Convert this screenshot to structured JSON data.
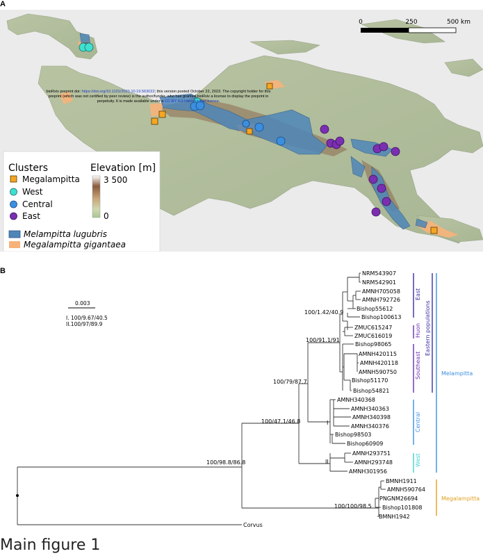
{
  "panel_a": {
    "label": "A",
    "scale_bar": {
      "ticks": [
        "0",
        "250",
        "500 km"
      ]
    },
    "preprint_notice": {
      "line1a": "bioRxiv preprint doi: ",
      "link1": "https://doi.org/10.1101/2023.10.19.563022",
      "line1b": "; this version posted October 22, 2023. The copyright holder for this",
      "line2": "preprint (which was not certified by peer review) is the author/funder, who has granted bioRxiv a license to display the preprint in",
      "line3a": "perpetuity. It is made available under a ",
      "link2": "CC-BY 4.0 International license",
      "line3b": "."
    },
    "legend": {
      "clusters_title": "Clusters",
      "clusters": [
        "Megalampitta",
        "West",
        "Central",
        "East"
      ],
      "elevation_title": "Elevation [m]",
      "elevation_max": "3 500",
      "elevation_min": "0",
      "species": [
        "Melampitta lugubris",
        "Megalampitta gigantaea"
      ],
      "colors": {
        "Megalampitta": "#f5a623",
        "West": "#40e0d0",
        "Central": "#3b8fe0",
        "East": "#7b2fb0",
        "lugubris_fill": "#4f86b8",
        "gigantaea_fill": "#f7b27a"
      }
    }
  },
  "panel_b": {
    "label": "B",
    "scale_label": "0.003",
    "node_key": [
      "I. 100/9.67/40.5",
      "II.100/97/89.9"
    ],
    "node_supports": [
      "100/98.8/86.8",
      "100/47.1/46.8",
      "100/79/87.7",
      "100/91.1/91",
      "100/1.42/40.9",
      "100/100/98.5"
    ],
    "node_marks": [
      "I",
      "II"
    ],
    "tips": [
      "NRM543907",
      "NRM542901",
      "AMNH705058",
      "AMNH792726",
      "Bishop55612",
      "Bishop100613",
      "ZMUC615247",
      "ZMUC616019",
      "Bishop98065",
      "AMNH420115",
      "AMNH420118",
      "AMNH590750",
      "Bishop51170",
      "Bishop54821",
      "AMNH340368",
      "AMNH340363",
      "AMNH340398",
      "AMNH340376",
      "Bishop98503",
      "Bishop60909",
      "AMNH293751",
      "AMNH293748",
      "AMNH301956",
      "BMNH1911",
      "AMNH590764",
      "PNGNM26694",
      "Bishop101808",
      "BMNH1942",
      "Corvus"
    ],
    "clade_labels": [
      "East",
      "Huon",
      "Southeast",
      "Central",
      "West",
      "Eastern populations",
      "Melampitta",
      "Megalampitta"
    ]
  },
  "caption": "Main figure 1"
}
